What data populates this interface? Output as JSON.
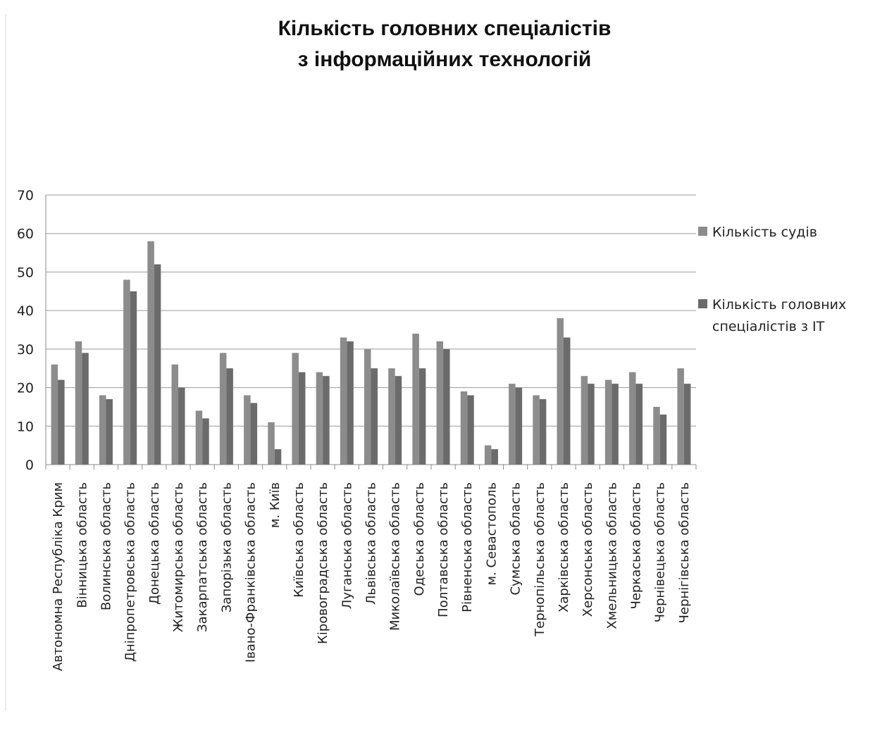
{
  "chart_data": {
    "type": "bar",
    "title_lines": [
      "Кількість головних спеціалістів",
      "з інформаційних технологій"
    ],
    "categories": [
      "Автономна Республіка Крим",
      "Вінницька область",
      "Волинська область",
      "Дніпропетровська область",
      "Донецька область",
      "Житомирська область",
      "Закарпатська область",
      "Запорізька область",
      "Івано-Франківська область",
      "м. Київ",
      "Київська область",
      "Кіровоградська область",
      "Луганська область",
      "Львівська область",
      "Миколаївська область",
      "Одеська область",
      "Полтавська область",
      "Рівненська область",
      "м. Севастополь",
      "Сумська область",
      "Тернопільська область",
      "Харківська область",
      "Херсонська область",
      "Хмельницька область",
      "Черкаська область",
      "Чернівецька область",
      "Чернігівська область"
    ],
    "series": [
      {
        "name": "Кількість судів",
        "color": "#8c8c8c",
        "values": [
          26,
          32,
          18,
          48,
          58,
          26,
          14,
          29,
          18,
          11,
          29,
          24,
          33,
          30,
          25,
          34,
          32,
          19,
          5,
          21,
          18,
          38,
          23,
          22,
          24,
          15,
          25
        ]
      },
      {
        "name_lines": [
          "Кількість головних",
          "спеціалістів з ІТ"
        ],
        "color": "#6b6b6b",
        "values": [
          22,
          29,
          17,
          45,
          52,
          20,
          12,
          25,
          16,
          4,
          24,
          23,
          32,
          25,
          23,
          25,
          30,
          18,
          4,
          20,
          17,
          33,
          21,
          21,
          21,
          13,
          21
        ]
      }
    ],
    "y_ticks": [
      "0",
      "10",
      "20",
      "30",
      "40",
      "50",
      "60",
      "70"
    ],
    "ylim": [
      0,
      70
    ],
    "grid": true,
    "legend_position": "right"
  }
}
